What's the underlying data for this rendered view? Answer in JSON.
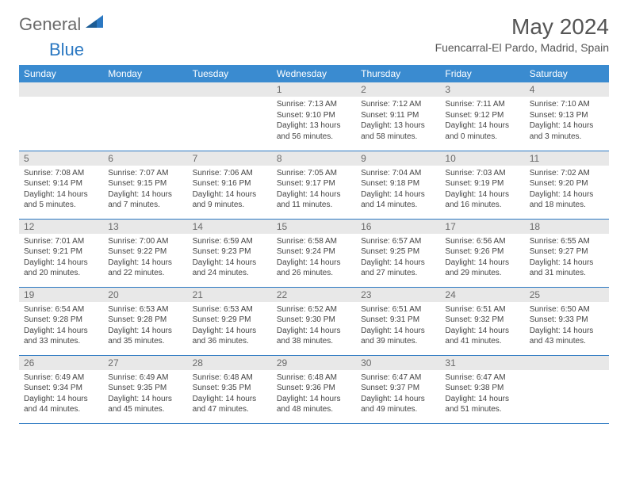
{
  "brand": {
    "part1": "General",
    "part2": "Blue"
  },
  "title": "May 2024",
  "location": "Fuencarral-El Pardo, Madrid, Spain",
  "colors": {
    "header_bg": "#3a8bd0",
    "header_text": "#ffffff",
    "daynum_bg": "#e8e8e8",
    "daynum_text": "#6a6a6a",
    "border": "#2b78c2",
    "body_text": "#444444",
    "title_text": "#555555"
  },
  "fonts": {
    "family": "Arial",
    "title_size": 28,
    "header_size": 12,
    "daynum_size": 12,
    "body_size": 10
  },
  "weekdays": [
    "Sunday",
    "Monday",
    "Tuesday",
    "Wednesday",
    "Thursday",
    "Friday",
    "Saturday"
  ],
  "weeks": [
    [
      null,
      null,
      null,
      {
        "n": "1",
        "sunrise": "7:13 AM",
        "sunset": "9:10 PM",
        "daylight": "13 hours and 56 minutes."
      },
      {
        "n": "2",
        "sunrise": "7:12 AM",
        "sunset": "9:11 PM",
        "daylight": "13 hours and 58 minutes."
      },
      {
        "n": "3",
        "sunrise": "7:11 AM",
        "sunset": "9:12 PM",
        "daylight": "14 hours and 0 minutes."
      },
      {
        "n": "4",
        "sunrise": "7:10 AM",
        "sunset": "9:13 PM",
        "daylight": "14 hours and 3 minutes."
      }
    ],
    [
      {
        "n": "5",
        "sunrise": "7:08 AM",
        "sunset": "9:14 PM",
        "daylight": "14 hours and 5 minutes."
      },
      {
        "n": "6",
        "sunrise": "7:07 AM",
        "sunset": "9:15 PM",
        "daylight": "14 hours and 7 minutes."
      },
      {
        "n": "7",
        "sunrise": "7:06 AM",
        "sunset": "9:16 PM",
        "daylight": "14 hours and 9 minutes."
      },
      {
        "n": "8",
        "sunrise": "7:05 AM",
        "sunset": "9:17 PM",
        "daylight": "14 hours and 11 minutes."
      },
      {
        "n": "9",
        "sunrise": "7:04 AM",
        "sunset": "9:18 PM",
        "daylight": "14 hours and 14 minutes."
      },
      {
        "n": "10",
        "sunrise": "7:03 AM",
        "sunset": "9:19 PM",
        "daylight": "14 hours and 16 minutes."
      },
      {
        "n": "11",
        "sunrise": "7:02 AM",
        "sunset": "9:20 PM",
        "daylight": "14 hours and 18 minutes."
      }
    ],
    [
      {
        "n": "12",
        "sunrise": "7:01 AM",
        "sunset": "9:21 PM",
        "daylight": "14 hours and 20 minutes."
      },
      {
        "n": "13",
        "sunrise": "7:00 AM",
        "sunset": "9:22 PM",
        "daylight": "14 hours and 22 minutes."
      },
      {
        "n": "14",
        "sunrise": "6:59 AM",
        "sunset": "9:23 PM",
        "daylight": "14 hours and 24 minutes."
      },
      {
        "n": "15",
        "sunrise": "6:58 AM",
        "sunset": "9:24 PM",
        "daylight": "14 hours and 26 minutes."
      },
      {
        "n": "16",
        "sunrise": "6:57 AM",
        "sunset": "9:25 PM",
        "daylight": "14 hours and 27 minutes."
      },
      {
        "n": "17",
        "sunrise": "6:56 AM",
        "sunset": "9:26 PM",
        "daylight": "14 hours and 29 minutes."
      },
      {
        "n": "18",
        "sunrise": "6:55 AM",
        "sunset": "9:27 PM",
        "daylight": "14 hours and 31 minutes."
      }
    ],
    [
      {
        "n": "19",
        "sunrise": "6:54 AM",
        "sunset": "9:28 PM",
        "daylight": "14 hours and 33 minutes."
      },
      {
        "n": "20",
        "sunrise": "6:53 AM",
        "sunset": "9:28 PM",
        "daylight": "14 hours and 35 minutes."
      },
      {
        "n": "21",
        "sunrise": "6:53 AM",
        "sunset": "9:29 PM",
        "daylight": "14 hours and 36 minutes."
      },
      {
        "n": "22",
        "sunrise": "6:52 AM",
        "sunset": "9:30 PM",
        "daylight": "14 hours and 38 minutes."
      },
      {
        "n": "23",
        "sunrise": "6:51 AM",
        "sunset": "9:31 PM",
        "daylight": "14 hours and 39 minutes."
      },
      {
        "n": "24",
        "sunrise": "6:51 AM",
        "sunset": "9:32 PM",
        "daylight": "14 hours and 41 minutes."
      },
      {
        "n": "25",
        "sunrise": "6:50 AM",
        "sunset": "9:33 PM",
        "daylight": "14 hours and 43 minutes."
      }
    ],
    [
      {
        "n": "26",
        "sunrise": "6:49 AM",
        "sunset": "9:34 PM",
        "daylight": "14 hours and 44 minutes."
      },
      {
        "n": "27",
        "sunrise": "6:49 AM",
        "sunset": "9:35 PM",
        "daylight": "14 hours and 45 minutes."
      },
      {
        "n": "28",
        "sunrise": "6:48 AM",
        "sunset": "9:35 PM",
        "daylight": "14 hours and 47 minutes."
      },
      {
        "n": "29",
        "sunrise": "6:48 AM",
        "sunset": "9:36 PM",
        "daylight": "14 hours and 48 minutes."
      },
      {
        "n": "30",
        "sunrise": "6:47 AM",
        "sunset": "9:37 PM",
        "daylight": "14 hours and 49 minutes."
      },
      {
        "n": "31",
        "sunrise": "6:47 AM",
        "sunset": "9:38 PM",
        "daylight": "14 hours and 51 minutes."
      },
      null
    ]
  ],
  "labels": {
    "sunrise": "Sunrise:",
    "sunset": "Sunset:",
    "daylight": "Daylight:"
  }
}
